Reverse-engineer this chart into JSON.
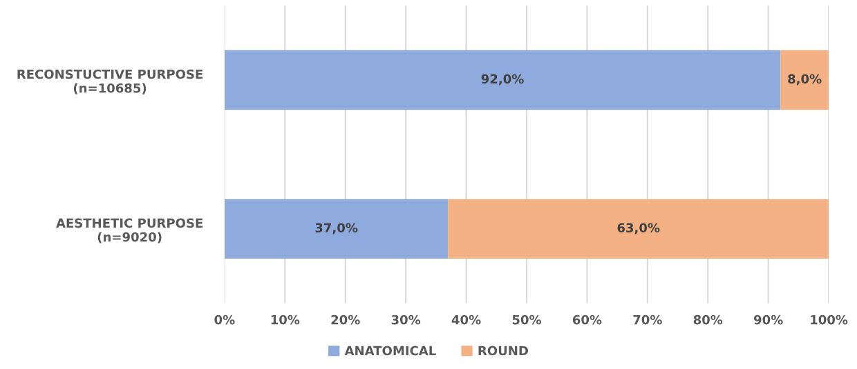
{
  "chart_data": {
    "type": "bar",
    "orientation": "horizontal",
    "stacked": true,
    "categories": [
      "RECONSTUCTIVE PURPOSE\n(n=10685)",
      "AESTHETIC PURPOSE\n(n=9020)"
    ],
    "series": [
      {
        "name": "ANATOMICAL",
        "color": "#8faadc",
        "values": [
          92.0,
          37.0
        ],
        "value_labels": [
          "92,0%",
          "37,0%"
        ]
      },
      {
        "name": "ROUND",
        "color": "#f4b183",
        "values": [
          8.0,
          63.0
        ],
        "value_labels": [
          "8,0%",
          "63,0%"
        ]
      }
    ],
    "xlim": [
      0,
      100
    ],
    "xticks": [
      {
        "value": 0,
        "label": "0%"
      },
      {
        "value": 10,
        "label": "10%"
      },
      {
        "value": 20,
        "label": "20%"
      },
      {
        "value": 30,
        "label": "30%"
      },
      {
        "value": 40,
        "label": "40%"
      },
      {
        "value": 50,
        "label": "50%"
      },
      {
        "value": 60,
        "label": "60%"
      },
      {
        "value": 70,
        "label": "70%"
      },
      {
        "value": 80,
        "label": "80%"
      },
      {
        "value": 90,
        "label": "90%"
      },
      {
        "value": 100,
        "label": "100%"
      }
    ],
    "grid": "x",
    "legend": "bottom"
  }
}
